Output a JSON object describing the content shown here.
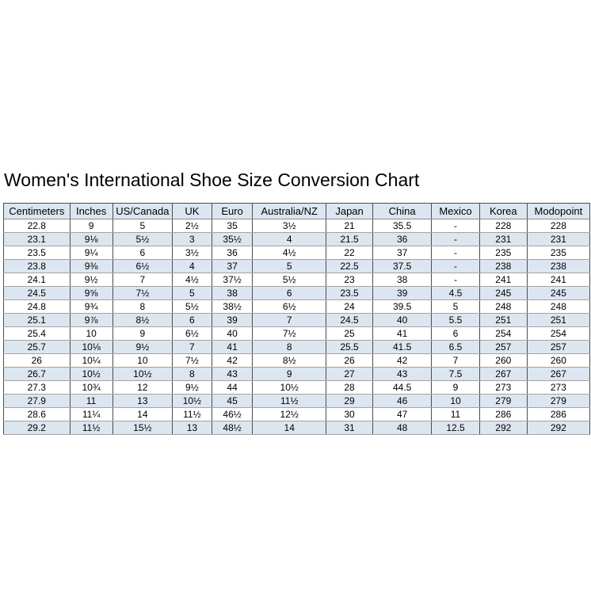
{
  "page": {
    "title": "Women's International Shoe Size Conversion Chart"
  },
  "colors": {
    "header_bg": "#dce6f1",
    "row_shaded_bg": "#dce6f1",
    "row_plain_bg": "#ffffff",
    "border_vertical": "#4d4d4d",
    "border_horizontal": "#a3a3a3",
    "text": "#000000"
  },
  "chart_data": {
    "type": "table",
    "title": "Women's International Shoe Size Conversion Chart",
    "legend_position": "none",
    "grid": true,
    "zebra_shading": "alternate rows light blue starting at second data row",
    "columns": [
      "Centimeters",
      "Inches",
      "US/Canada",
      "UK",
      "Euro",
      "Australia/NZ",
      "Japan",
      "China",
      "Mexico",
      "Korea",
      "Modopoint"
    ],
    "rows": [
      [
        "22.8",
        "9",
        "5",
        "2½",
        "35",
        "3½",
        "21",
        "35.5",
        "-",
        "228",
        "228"
      ],
      [
        "23.1",
        "9⅛",
        "5½",
        "3",
        "35½",
        "4",
        "21.5",
        "36",
        "-",
        "231",
        "231"
      ],
      [
        "23.5",
        "9¼",
        "6",
        "3½",
        "36",
        "4½",
        "22",
        "37",
        "-",
        "235",
        "235"
      ],
      [
        "23.8",
        "9⅜",
        "6½",
        "4",
        "37",
        "5",
        "22.5",
        "37.5",
        "-",
        "238",
        "238"
      ],
      [
        "24.1",
        "9½",
        "7",
        "4½",
        "37½",
        "5½",
        "23",
        "38",
        "-",
        "241",
        "241"
      ],
      [
        "24.5",
        "9⅝",
        "7½",
        "5",
        "38",
        "6",
        "23.5",
        "39",
        "4.5",
        "245",
        "245"
      ],
      [
        "24.8",
        "9¾",
        "8",
        "5½",
        "38½",
        "6½",
        "24",
        "39.5",
        "5",
        "248",
        "248"
      ],
      [
        "25.1",
        "9⅞",
        "8½",
        "6",
        "39",
        "7",
        "24.5",
        "40",
        "5.5",
        "251",
        "251"
      ],
      [
        "25.4",
        "10",
        "9",
        "6½",
        "40",
        "7½",
        "25",
        "41",
        "6",
        "254",
        "254"
      ],
      [
        "25.7",
        "10⅛",
        "9½",
        "7",
        "41",
        "8",
        "25.5",
        "41.5",
        "6.5",
        "257",
        "257"
      ],
      [
        "26",
        "10¼",
        "10",
        "7½",
        "42",
        "8½",
        "26",
        "42",
        "7",
        "260",
        "260"
      ],
      [
        "26.7",
        "10½",
        "10½",
        "8",
        "43",
        "9",
        "27",
        "43",
        "7.5",
        "267",
        "267"
      ],
      [
        "27.3",
        "10¾",
        "12",
        "9½",
        "44",
        "10½",
        "28",
        "44.5",
        "9",
        "273",
        "273"
      ],
      [
        "27.9",
        "11",
        "13",
        "10½",
        "45",
        "11½",
        "29",
        "46",
        "10",
        "279",
        "279"
      ],
      [
        "28.6",
        "11¼",
        "14",
        "11½",
        "46½",
        "12½",
        "30",
        "47",
        "11",
        "286",
        "286"
      ],
      [
        "29.2",
        "11½",
        "15½",
        "13",
        "48½",
        "14",
        "31",
        "48",
        "12.5",
        "292",
        "292"
      ]
    ]
  }
}
